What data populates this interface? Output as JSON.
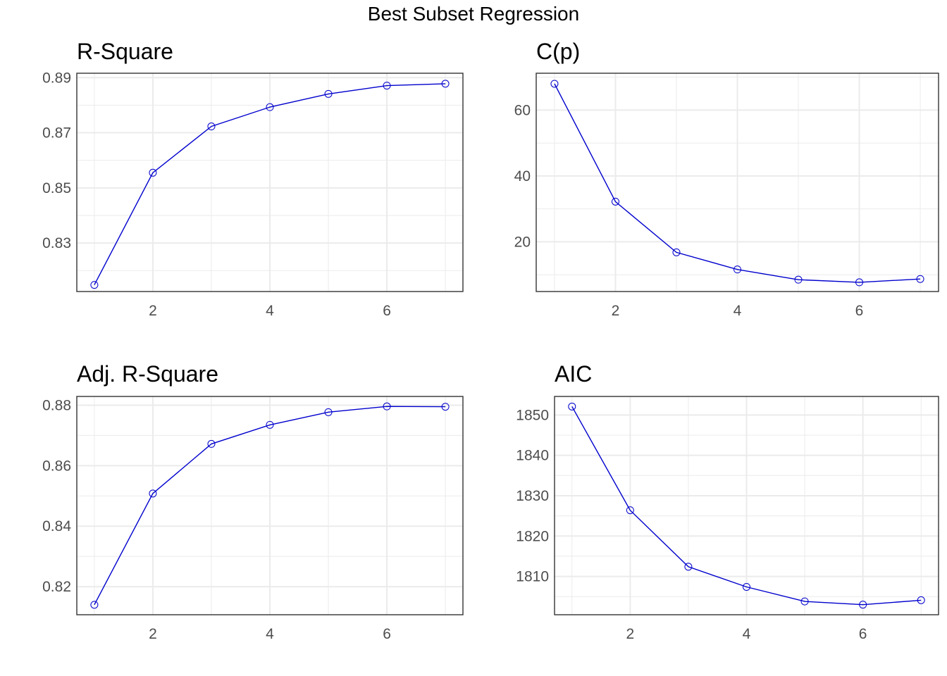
{
  "figure": {
    "title": "Best Subset Regression"
  },
  "style": {
    "line_color": "#0000CD",
    "point_color": "#0000CD",
    "grid_color": "#EBEBEB",
    "panel_border_color": "#333333",
    "tick_label_color": "#4D4D4D"
  },
  "chart_data": [
    {
      "type": "line",
      "title": "R-Square",
      "xlabel": "",
      "ylabel": "",
      "x": [
        1,
        2,
        3,
        4,
        5,
        6,
        7
      ],
      "y": [
        0.8148,
        0.8555,
        0.8723,
        0.8793,
        0.8841,
        0.8871,
        0.8878
      ],
      "xlim": [
        0.7,
        7.3
      ],
      "ylim": [
        0.8124,
        0.8916
      ],
      "xticks": [
        2,
        4,
        6
      ],
      "yticks": [
        0.83,
        0.85,
        0.87,
        0.89
      ],
      "ytick_labels": [
        "0.83",
        "0.85",
        "0.87",
        "0.89"
      ],
      "grid": true,
      "markers": "open-circle"
    },
    {
      "type": "line",
      "title": "C(p)",
      "xlabel": "",
      "ylabel": "",
      "x": [
        1,
        2,
        3,
        4,
        5,
        6,
        7
      ],
      "y": [
        68.0,
        32.2,
        16.8,
        11.6,
        8.5,
        7.7,
        8.7
      ],
      "xlim": [
        0.7,
        7.3
      ],
      "ylim": [
        4.9,
        71.2
      ],
      "xticks": [
        2,
        4,
        6
      ],
      "yticks": [
        20,
        40,
        60
      ],
      "ytick_labels": [
        "20",
        "40",
        "60"
      ],
      "grid": true,
      "markers": "open-circle"
    },
    {
      "type": "line",
      "title": "Adj. R-Square",
      "xlabel": "",
      "ylabel": "",
      "x": [
        1,
        2,
        3,
        4,
        5,
        6,
        7
      ],
      "y": [
        0.814,
        0.8508,
        0.8672,
        0.8735,
        0.8777,
        0.8796,
        0.8795
      ],
      "xlim": [
        0.7,
        7.3
      ],
      "ylim": [
        0.8107,
        0.8829
      ],
      "xticks": [
        2,
        4,
        6
      ],
      "yticks": [
        0.82,
        0.84,
        0.86,
        0.88
      ],
      "ytick_labels": [
        "0.82",
        "0.84",
        "0.86",
        "0.88"
      ],
      "grid": true,
      "markers": "open-circle"
    },
    {
      "type": "line",
      "title": "AIC",
      "xlabel": "",
      "ylabel": "",
      "x": [
        1,
        2,
        3,
        4,
        5,
        6,
        7
      ],
      "y": [
        1852.1,
        1826.4,
        1812.4,
        1807.4,
        1803.8,
        1803.0,
        1804.1
      ],
      "xlim": [
        0.7,
        7.3
      ],
      "ylim": [
        1800.5,
        1854.6
      ],
      "xticks": [
        2,
        4,
        6
      ],
      "yticks": [
        1810,
        1820,
        1830,
        1840,
        1850
      ],
      "ytick_labels": [
        "1810",
        "1820",
        "1830",
        "1840",
        "1850"
      ],
      "grid": true,
      "markers": "open-circle"
    }
  ]
}
